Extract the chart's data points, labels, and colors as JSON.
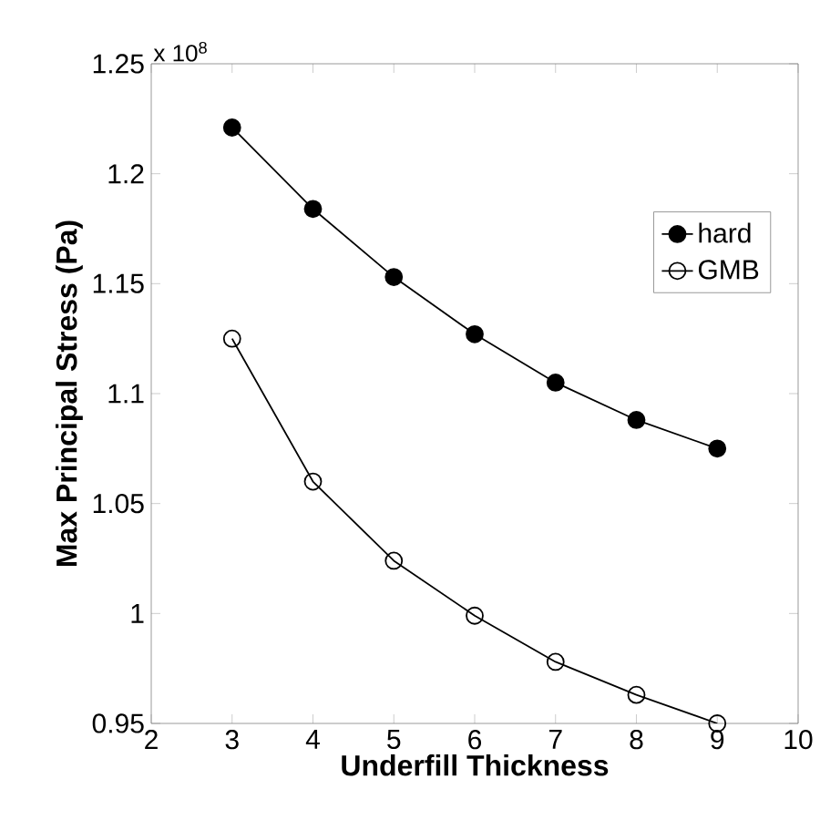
{
  "chart_data": {
    "type": "line",
    "xlabel": "Underfill Thickness",
    "ylabel": "Max Principal Stress (Pa)",
    "annotations": [
      "x 10$^{8}$"
    ],
    "x": [
      3,
      4,
      5,
      6,
      7,
      8,
      9
    ],
    "series": [
      {
        "name": "hard",
        "color": "#000000",
        "marker": "circle",
        "values": [
          1.221,
          1.184,
          1.153,
          1.127,
          1.105,
          1.088,
          1.075
        ]
      },
      {
        "name": "GMB",
        "color": "#000000",
        "marker": "open circle",
        "values": [
          1.125,
          1.06,
          1.024,
          0.999,
          0.978,
          0.963,
          0.95
        ]
      }
    ],
    "xlim": [
      2,
      10
    ],
    "ylim": [
      0.95,
      1.25
    ],
    "xticks": [
      2,
      3,
      4,
      5,
      6,
      7,
      8,
      9,
      10
    ],
    "yticks": [
      0.95,
      1,
      1.05,
      1.1,
      1.15,
      1.2,
      1.25
    ],
    "legend": "top right",
    "grid": false,
    "line_style": "solid"
  }
}
